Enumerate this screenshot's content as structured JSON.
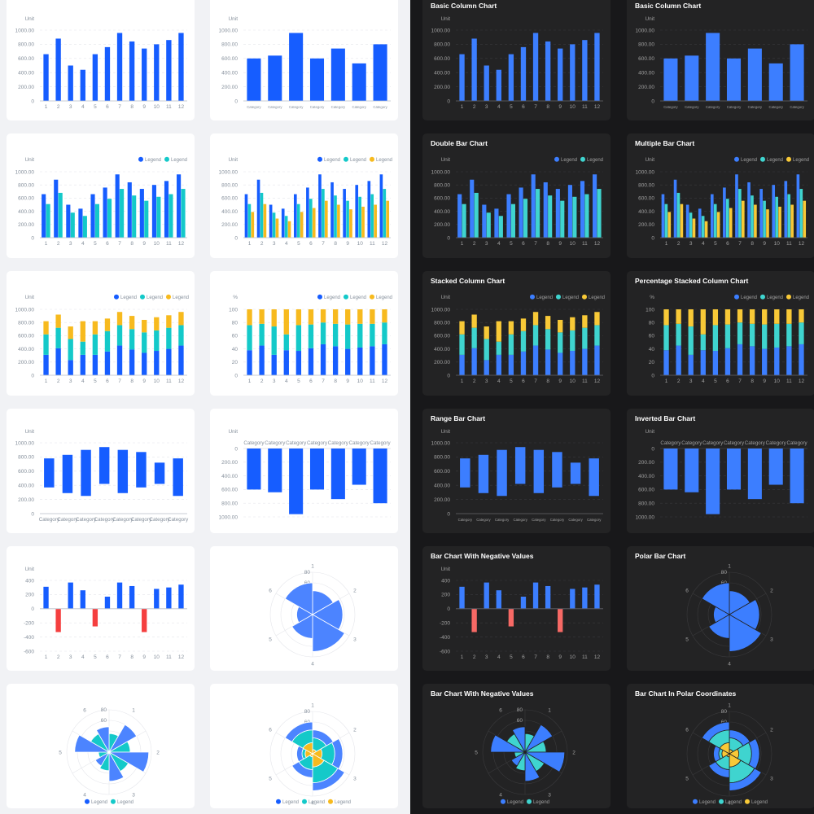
{
  "themes": {
    "light": {
      "bg": "#f1f2f5",
      "card": "#ffffff",
      "text": "#86909c",
      "grid": "#e5e6eb",
      "axis": "#c9cdd4",
      "title": "#1d2129"
    },
    "dark": {
      "bg": "#18181a",
      "card": "#232324",
      "text": "#a0a0a0",
      "grid": "#3a3a3c",
      "axis": "#55555a",
      "title": "#ffffff"
    }
  },
  "colors": {
    "light": {
      "blue": "#165dff",
      "cyan": "#14c9c9",
      "yellow": "#f7ba1e",
      "red": "#f53f3f",
      "polar": "#4c84ff"
    },
    "dark": {
      "blue": "#3c7eff",
      "cyan": "#3fd4cf",
      "yellow": "#f8c937",
      "red": "#f76965",
      "polar": "#3c7eff"
    }
  },
  "legend_label": "Legend",
  "chart_data": [
    {
      "id": "basic-column",
      "title": "Basic Column Chart",
      "type": "bar",
      "ylabel": "Unit",
      "ylim": [
        0,
        1000
      ],
      "yticks": [
        "0",
        "200.00",
        "400.00",
        "600.00",
        "800.00",
        "1000.00"
      ],
      "categories": [
        "1",
        "2",
        "3",
        "4",
        "5",
        "6",
        "7",
        "8",
        "9",
        "10",
        "11",
        "12"
      ],
      "series": [
        {
          "name": "Legend",
          "color": "blue",
          "values": [
            660,
            880,
            500,
            440,
            660,
            760,
            960,
            840,
            740,
            800,
            860,
            960
          ]
        }
      ],
      "legend": false
    },
    {
      "id": "basic-column-category",
      "title": "Basic Column Chart",
      "type": "bar",
      "ylabel": "Unit",
      "ylim": [
        0,
        1000
      ],
      "yticks": [
        "0",
        "200.00",
        "400.00",
        "600.00",
        "800.00",
        "1000.00"
      ],
      "categories": [
        "Category",
        "Category",
        "Category",
        "Category",
        "Category",
        "Category",
        "Category"
      ],
      "series": [
        {
          "name": "Legend",
          "color": "blue",
          "values": [
            600,
            640,
            960,
            600,
            740,
            530,
            800
          ]
        }
      ],
      "legend": false,
      "wide": true,
      "smallLabels": true
    },
    {
      "id": "double-bar",
      "title": "Double Bar Chart",
      "type": "bar",
      "ylabel": "Unit",
      "ylim": [
        0,
        1000
      ],
      "yticks": [
        "0",
        "200.00",
        "400.00",
        "600.00",
        "800.00",
        "1000.00"
      ],
      "categories": [
        "1",
        "2",
        "3",
        "4",
        "5",
        "6",
        "7",
        "8",
        "9",
        "10",
        "11",
        "12"
      ],
      "series": [
        {
          "name": "Legend",
          "color": "blue",
          "values": [
            660,
            880,
            500,
            440,
            660,
            760,
            960,
            840,
            740,
            800,
            860,
            960
          ]
        },
        {
          "name": "Legend",
          "color": "cyan",
          "values": [
            510,
            680,
            380,
            330,
            510,
            590,
            740,
            640,
            560,
            620,
            660,
            740
          ]
        }
      ],
      "legend": true
    },
    {
      "id": "multiple-bar",
      "title": "Multiple Bar Chart",
      "type": "bar",
      "ylabel": "Unit",
      "ylim": [
        0,
        1000
      ],
      "yticks": [
        "0",
        "200.00",
        "400.00",
        "600.00",
        "800.00",
        "1000.00"
      ],
      "categories": [
        "1",
        "2",
        "3",
        "4",
        "5",
        "6",
        "7",
        "8",
        "9",
        "10",
        "11",
        "12"
      ],
      "series": [
        {
          "name": "Legend",
          "color": "blue",
          "values": [
            660,
            880,
            500,
            440,
            660,
            760,
            960,
            840,
            740,
            800,
            860,
            960
          ]
        },
        {
          "name": "Legend",
          "color": "cyan",
          "values": [
            510,
            680,
            380,
            330,
            510,
            590,
            740,
            640,
            560,
            620,
            660,
            740
          ]
        },
        {
          "name": "Legend",
          "color": "yellow",
          "values": [
            390,
            510,
            290,
            250,
            390,
            450,
            560,
            500,
            430,
            470,
            500,
            560
          ]
        }
      ],
      "legend": true
    },
    {
      "id": "stacked-column",
      "title": "Stacked Column Chart",
      "type": "stacked",
      "ylabel": "Unit",
      "ylim": [
        0,
        1000
      ],
      "yticks": [
        "0",
        "200.00",
        "400.00",
        "600.00",
        "800.00",
        "1000.00"
      ],
      "categories": [
        "1",
        "2",
        "3",
        "4",
        "5",
        "6",
        "7",
        "8",
        "9",
        "10",
        "11",
        "12"
      ],
      "series": [
        {
          "name": "Legend",
          "color": "blue",
          "values": [
            310,
            410,
            230,
            310,
            310,
            360,
            450,
            390,
            340,
            370,
            400,
            450
          ]
        },
        {
          "name": "Legend",
          "color": "cyan",
          "values": [
            310,
            310,
            320,
            200,
            310,
            310,
            310,
            310,
            310,
            310,
            320,
            310
          ]
        },
        {
          "name": "Legend",
          "color": "yellow",
          "values": [
            200,
            200,
            190,
            310,
            200,
            190,
            200,
            200,
            190,
            200,
            190,
            200
          ]
        }
      ],
      "legend": true
    },
    {
      "id": "percentage-stacked",
      "title": "Percentage Stacked Column Chart",
      "type": "stacked",
      "ylabel": "%",
      "ylim": [
        0,
        100
      ],
      "yticks": [
        "0",
        "20",
        "40",
        "60",
        "80",
        "100"
      ],
      "categories": [
        "1",
        "2",
        "3",
        "4",
        "5",
        "6",
        "7",
        "8",
        "9",
        "10",
        "11",
        "12"
      ],
      "series": [
        {
          "name": "Legend",
          "color": "blue",
          "values": [
            38,
            45,
            31,
            38,
            37,
            41,
            47,
            44,
            40,
            42,
            44,
            47
          ]
        },
        {
          "name": "Legend",
          "color": "cyan",
          "values": [
            38,
            33,
            43,
            24,
            39,
            36,
            33,
            34,
            37,
            36,
            34,
            33
          ]
        },
        {
          "name": "Legend",
          "color": "yellow",
          "values": [
            24,
            22,
            26,
            38,
            24,
            23,
            20,
            22,
            23,
            22,
            22,
            20
          ]
        }
      ],
      "legend": true
    },
    {
      "id": "range-bar",
      "title": "Range Bar Chart",
      "type": "range",
      "ylabel": "Unit",
      "ylim": [
        0,
        1000
      ],
      "yticks": [
        "0",
        "200.00",
        "400.00",
        "600.00",
        "800.00",
        "1000.00"
      ],
      "categories": [
        "Category",
        "Category",
        "Category",
        "Category",
        "Category",
        "Category",
        "Category",
        "Category"
      ],
      "series": [
        {
          "name": "Legend",
          "color": "blue",
          "values": [
            [
              370,
              780
            ],
            [
              290,
              830
            ],
            [
              250,
              900
            ],
            [
              420,
              940
            ],
            [
              290,
              900
            ],
            [
              370,
              870
            ],
            [
              420,
              720
            ],
            [
              250,
              780
            ]
          ]
        }
      ],
      "legend": false
    },
    {
      "id": "inverted-bar",
      "title": "Inverted Bar Chart",
      "type": "inverted",
      "ylabel": "Unit",
      "ylim": [
        0,
        1000
      ],
      "yticks": [
        "0",
        "200.00",
        "400.00",
        "600.00",
        "800.00",
        "1000.00"
      ],
      "categories": [
        "Category",
        "Category",
        "Category",
        "Category",
        "Category",
        "Category",
        "Category"
      ],
      "series": [
        {
          "name": "Legend",
          "color": "blue",
          "values": [
            600,
            640,
            960,
            600,
            740,
            530,
            800
          ]
        }
      ],
      "legend": false,
      "wide": true
    },
    {
      "id": "negative-bar",
      "title": "Bar Chart With Negative Values",
      "type": "bar",
      "ylabel": "Unit",
      "ylim": [
        -600,
        400
      ],
      "yticks": [
        "-600",
        "-400",
        "-200",
        "0",
        "200",
        "400"
      ],
      "categories": [
        "1",
        "2",
        "3",
        "4",
        "5",
        "6",
        "7",
        "8",
        "9",
        "10",
        "11",
        "12"
      ],
      "series": [
        {
          "name": "Legend",
          "color": "blue",
          "negColor": "red",
          "values": [
            310,
            -330,
            370,
            260,
            -250,
            170,
            370,
            320,
            -330,
            280,
            300,
            340
          ]
        }
      ],
      "legend": false
    },
    {
      "id": "polar-bar",
      "title": "Polar Bar Chart",
      "type": "polar",
      "rmax": 80,
      "rticks": [
        "60",
        "80"
      ],
      "categories": [
        "1",
        "2",
        "3",
        "4",
        "5",
        "6"
      ],
      "series": [
        {
          "name": "Legend",
          "color": "polar",
          "values": [
            45,
            57,
            70,
            45,
            30,
            60
          ]
        }
      ],
      "legend": false
    },
    {
      "id": "polar-negative",
      "title": "Bar Chart With Negative Values",
      "type": "polar-group",
      "rmax": 80,
      "rticks": [
        "40",
        "60",
        "80"
      ],
      "categories": [
        "1",
        "2",
        "3",
        "4",
        "5",
        "6"
      ],
      "series": [
        {
          "name": "Legend",
          "color": "polar",
          "values": [
            60,
            75,
            55,
            30,
            65,
            48
          ]
        },
        {
          "name": "Legend",
          "color": "cyan",
          "values": [
            35,
            40,
            42,
            35,
            20,
            40
          ]
        }
      ],
      "legend": true
    },
    {
      "id": "polar-stacked",
      "title": "Bar Chart In Polar Coordinates",
      "type": "polar-stack",
      "rmax": 80,
      "rticks": [
        "60",
        "80"
      ],
      "categories": [
        "1",
        "2",
        "3",
        "4",
        "5",
        "6"
      ],
      "series": [
        {
          "name": "Legend",
          "color": "polar",
          "values": [
            15,
            15,
            15,
            15,
            10,
            15
          ]
        },
        {
          "name": "Legend",
          "color": "cyan",
          "values": [
            22,
            24,
            30,
            24,
            6,
            24
          ]
        },
        {
          "name": "Legend",
          "color": "yellow",
          "values": [
            8,
            18,
            25,
            6,
            14,
            21
          ]
        }
      ],
      "legend": true
    }
  ],
  "layout": {
    "light_cols": [
      8,
      258
    ],
    "dark_cols": [
      519,
      770
    ],
    "row_tops": [
      -5,
      164,
      333,
      502,
      671,
      840
    ]
  }
}
